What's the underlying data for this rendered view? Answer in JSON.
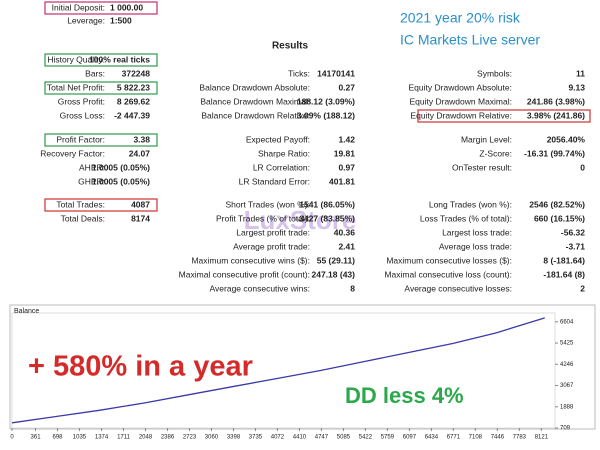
{
  "header": {
    "results_title": "Results",
    "overlay_title": "2021 year 20% risk",
    "overlay_subtitle": "IC Markets Live server"
  },
  "rows": [
    {
      "c1": {
        "label": "Initial Deposit:",
        "value": "1 000.00",
        "box": "#c2306e"
      }
    },
    {
      "c1": {
        "label": "Leverage:",
        "value": "1:500"
      }
    },
    {
      "c1": {
        "label": "History Quality:",
        "value": "100% real ticks",
        "box": "#2e9a4e"
      }
    },
    {
      "c1": {
        "label": "Bars:",
        "value": "372248"
      },
      "c2": {
        "label": "Ticks:",
        "value": "14170141"
      },
      "c3": {
        "label": "Symbols:",
        "value": "11"
      }
    },
    {
      "c1": {
        "label": "Total Net Profit:",
        "value": "5 822.23",
        "box": "#2e9a4e"
      },
      "c2": {
        "label": "Balance Drawdown Absolute:",
        "value": "0.27"
      },
      "c3": {
        "label": "Equity Drawdown Absolute:",
        "value": "9.13"
      }
    },
    {
      "c1": {
        "label": "Gross Profit:",
        "value": "8 269.62"
      },
      "c2": {
        "label": "Balance Drawdown Maximal:",
        "value": "188.12 (3.09%)"
      },
      "c3": {
        "label": "Equity Drawdown Maximal:",
        "value": "241.86 (3.98%)"
      }
    },
    {
      "c1": {
        "label": "Gross Loss:",
        "value": "-2 447.39"
      },
      "c2": {
        "label": "Balance Drawdown Relative:",
        "value": "3.09% (188.12)"
      },
      "c3": {
        "label": "Equity Drawdown Relative:",
        "value": "3.98% (241.86)",
        "box": "#d03030"
      }
    },
    {
      "c1": {
        "label": "Profit Factor:",
        "value": "3.38",
        "box": "#2e9a4e"
      },
      "c2": {
        "label": "Expected Payoff:",
        "value": "1.42"
      },
      "c3": {
        "label": "Margin Level:",
        "value": "2056.40%"
      }
    },
    {
      "c1": {
        "label": "Recovery Factor:",
        "value": "24.07"
      },
      "c2": {
        "label": "Sharpe Ratio:",
        "value": "19.81"
      },
      "c3": {
        "label": "Z-Score:",
        "value": "-16.31 (99.74%)"
      }
    },
    {
      "c1": {
        "label": "AHPR:",
        "value": "1.0005 (0.05%)"
      },
      "c2": {
        "label": "LR Correlation:",
        "value": "0.97"
      },
      "c3": {
        "label": "OnTester result:",
        "value": "0"
      }
    },
    {
      "c1": {
        "label": "GHPR:",
        "value": "1.0005 (0.05%)"
      },
      "c2": {
        "label": "LR Standard Error:",
        "value": "401.81"
      }
    },
    {
      "c1": {
        "label": "Total Trades:",
        "value": "4087",
        "box": "#d03030"
      },
      "c2": {
        "label": "Short Trades (won %):",
        "value": "1541 (86.05%)"
      },
      "c3": {
        "label": "Long Trades (won %):",
        "value": "2546 (82.52%)"
      }
    },
    {
      "c1": {
        "label": "Total Deals:",
        "value": "8174"
      },
      "c2": {
        "label": "Profit Trades (% of total):",
        "value": "3427 (83.85%)"
      },
      "c3": {
        "label": "Loss Trades (% of total):",
        "value": "660 (16.15%)"
      }
    },
    {
      "c2": {
        "label": "Largest profit trade:",
        "value": "40.36"
      },
      "c3": {
        "label": "Largest loss trade:",
        "value": "-56.32"
      }
    },
    {
      "c2": {
        "label": "Average profit trade:",
        "value": "2.41"
      },
      "c3": {
        "label": "Average loss trade:",
        "value": "-3.71"
      }
    },
    {
      "c2": {
        "label": "Maximum consecutive wins ($):",
        "value": "55 (29.11)"
      },
      "c3": {
        "label": "Maximum consecutive losses ($):",
        "value": "8 (-181.64)"
      }
    },
    {
      "c2": {
        "label": "Maximal consecutive profit (count):",
        "value": "247.18 (43)"
      },
      "c3": {
        "label": "Maximal consecutive loss (count):",
        "value": "-181.64 (8)"
      }
    },
    {
      "c2": {
        "label": "Average consecutive wins:",
        "value": "8"
      },
      "c3": {
        "label": "Average consecutive losses:",
        "value": "2"
      }
    }
  ],
  "watermark": "LuxStore",
  "balance_chart": {
    "type": "line",
    "title": "Balance",
    "x": [
      0,
      676,
      1352,
      2028,
      2704,
      3380,
      4056,
      4732,
      5408,
      6084,
      6760,
      7436,
      8174
    ],
    "series": [
      {
        "color": "#3a3aa8",
        "values": [
          1000,
          1350,
          1700,
          2100,
          2550,
          3000,
          3450,
          3900,
          4400,
          4900,
          5400,
          6000,
          6822
        ]
      }
    ],
    "xlim": [
      0,
      8330
    ],
    "ylim": [
      709,
      7095
    ],
    "xticks": [
      0,
      361,
      698,
      1035,
      1374,
      1711,
      2048,
      2386,
      2723,
      3060,
      3398,
      3735,
      4072,
      4410,
      4747,
      5085,
      5422,
      5759,
      6097,
      6434,
      6771,
      7108,
      7446,
      7783,
      8121
    ],
    "yticks": [
      709,
      1888,
      3067,
      4246,
      5425,
      6604
    ]
  },
  "annotations": {
    "gain": "+ 580% in a year",
    "drawdown": "DD less 4%"
  }
}
